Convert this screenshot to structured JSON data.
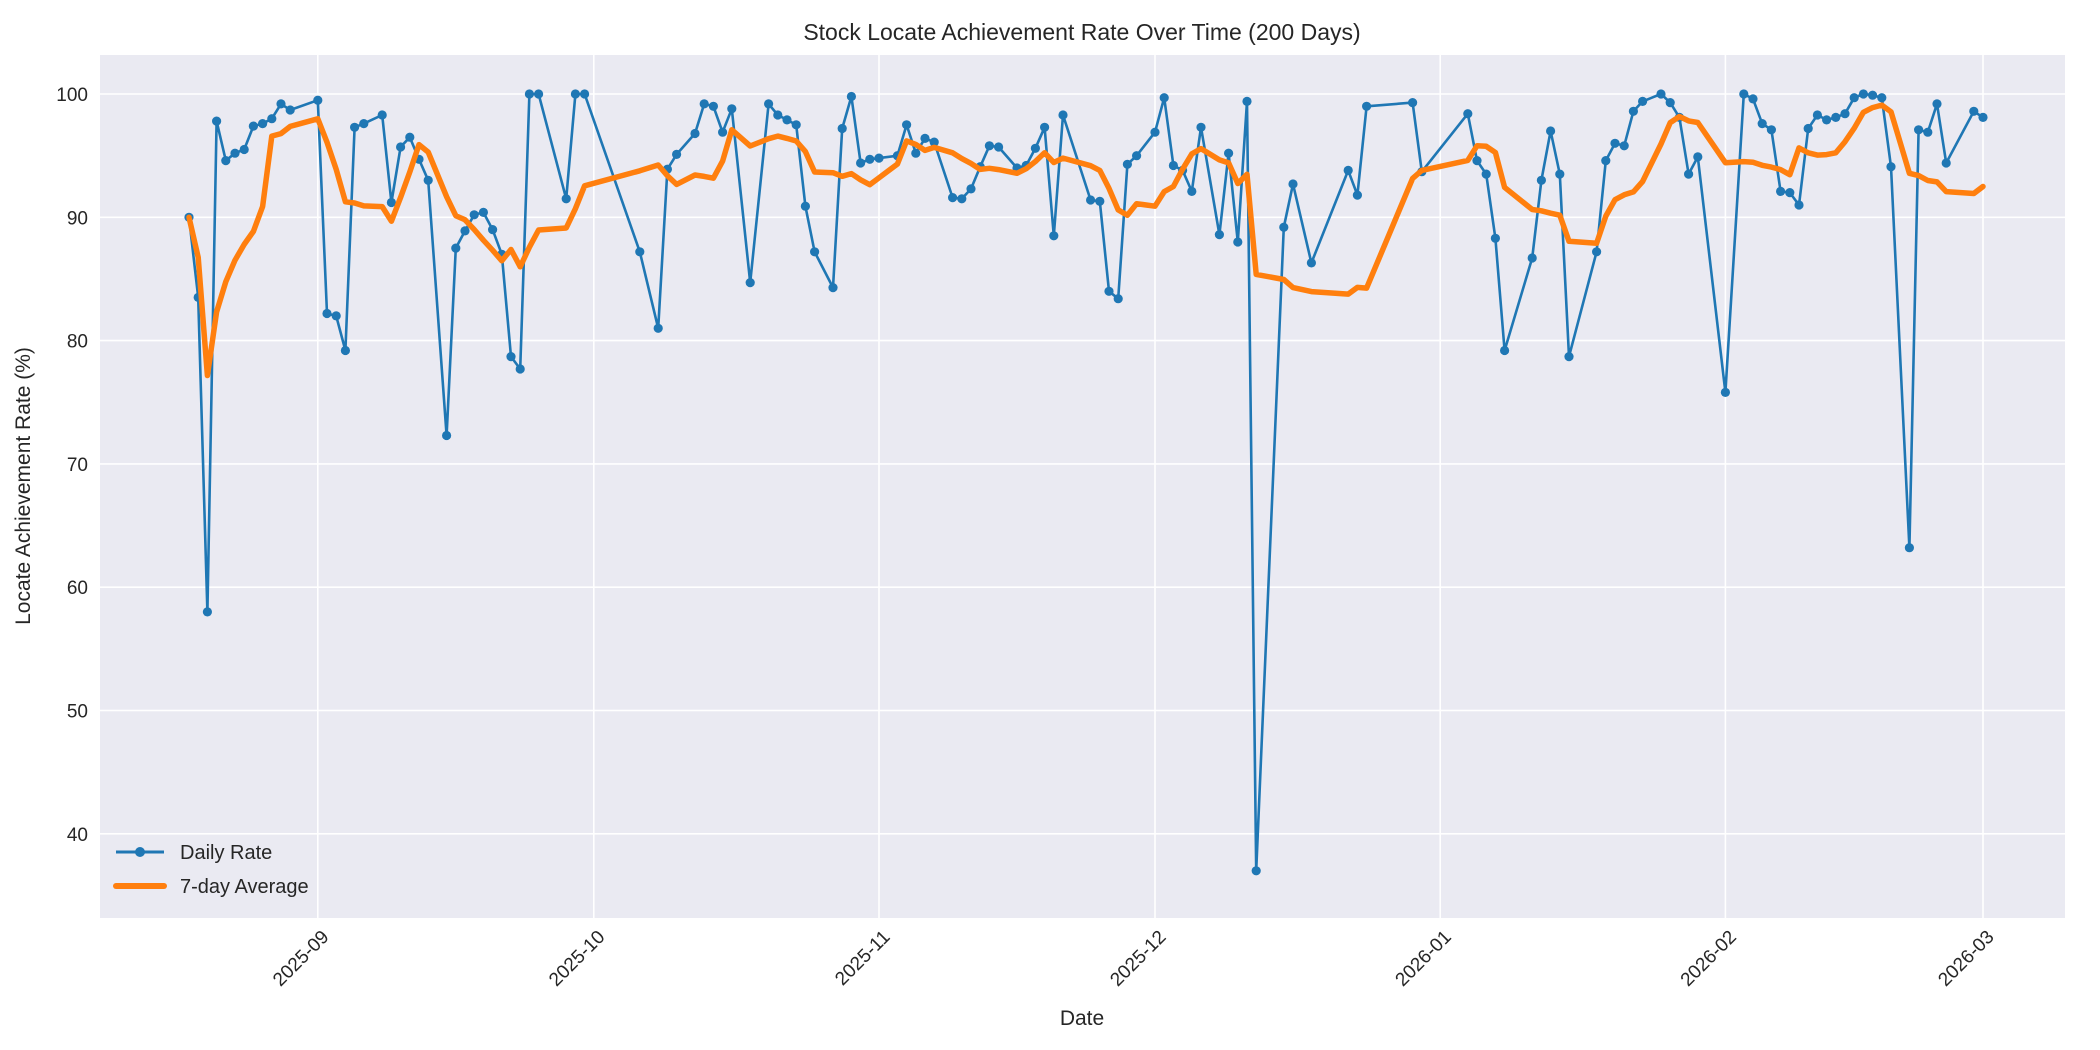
{
  "chart_data": {
    "type": "line",
    "title": "Stock Locate Achievement Rate Over Time (200 Days)",
    "xlabel": "Date",
    "ylabel": "Locate Achievement Rate (%)",
    "legend": {
      "daily": "Daily Rate",
      "average": "7-day Average"
    },
    "grid": true,
    "legend_position": "lower-left",
    "ylim": [
      33.2,
      103.2
    ],
    "yticks": [
      40,
      50,
      60,
      70,
      80,
      90,
      100
    ],
    "xticks": [
      {
        "date": "2025-09-01",
        "label": "2025-09"
      },
      {
        "date": "2025-10-01",
        "label": "2025-10"
      },
      {
        "date": "2025-11-01",
        "label": "2025-11"
      },
      {
        "date": "2025-12-01",
        "label": "2025-12"
      },
      {
        "date": "2026-01-01",
        "label": "2026-01"
      },
      {
        "date": "2026-02-01",
        "label": "2026-02"
      },
      {
        "date": "2026-03-01",
        "label": "2026-03"
      }
    ],
    "colors": {
      "daily": "#1f77b4",
      "average": "#ff7f0e",
      "plot_background": "#eaeaf2",
      "gridline": "#ffffff",
      "figure_background": "#ffffff",
      "text": "#262626"
    },
    "average_definition": "rolling mean of last 7 observations (min 1)",
    "series": {
      "name": "Daily Rate",
      "dates": [
        "2025-08-18",
        "2025-08-19",
        "2025-08-20",
        "2025-08-21",
        "2025-08-22",
        "2025-08-23",
        "2025-08-24",
        "2025-08-25",
        "2025-08-26",
        "2025-08-27",
        "2025-08-28",
        "2025-08-29",
        "2025-09-01",
        "2025-09-02",
        "2025-09-03",
        "2025-09-04",
        "2025-09-05",
        "2025-09-06",
        "2025-09-08",
        "2025-09-09",
        "2025-09-10",
        "2025-09-11",
        "2025-09-12",
        "2025-09-13",
        "2025-09-15",
        "2025-09-16",
        "2025-09-17",
        "2025-09-18",
        "2025-09-19",
        "2025-09-20",
        "2025-09-21",
        "2025-09-22",
        "2025-09-23",
        "2025-09-24",
        "2025-09-25",
        "2025-09-28",
        "2025-09-29",
        "2025-09-30",
        "2025-10-06",
        "2025-10-08",
        "2025-10-09",
        "2025-10-10",
        "2025-10-12",
        "2025-10-13",
        "2025-10-14",
        "2025-10-15",
        "2025-10-16",
        "2025-10-18",
        "2025-10-20",
        "2025-10-21",
        "2025-10-22",
        "2025-10-23",
        "2025-10-24",
        "2025-10-25",
        "2025-10-27",
        "2025-10-28",
        "2025-10-29",
        "2025-10-30",
        "2025-10-31",
        "2025-11-01",
        "2025-11-03",
        "2025-11-04",
        "2025-11-05",
        "2025-11-06",
        "2025-11-07",
        "2025-11-09",
        "2025-11-10",
        "2025-11-11",
        "2025-11-12",
        "2025-11-13",
        "2025-11-14",
        "2025-11-16",
        "2025-11-17",
        "2025-11-18",
        "2025-11-19",
        "2025-11-20",
        "2025-11-21",
        "2025-11-24",
        "2025-11-25",
        "2025-11-26",
        "2025-11-27",
        "2025-11-28",
        "2025-11-29",
        "2025-12-01",
        "2025-12-02",
        "2025-12-03",
        "2025-12-04",
        "2025-12-05",
        "2025-12-06",
        "2025-12-08",
        "2025-12-09",
        "2025-12-10",
        "2025-12-11",
        "2025-12-12",
        "2025-12-15",
        "2025-12-16",
        "2025-12-18",
        "2025-12-22",
        "2025-12-23",
        "2025-12-24",
        "2025-12-29",
        "2025-12-30",
        "2026-01-04",
        "2026-01-05",
        "2026-01-06",
        "2026-01-07",
        "2026-01-08",
        "2026-01-11",
        "2026-01-12",
        "2026-01-13",
        "2026-01-14",
        "2026-01-15",
        "2026-01-18",
        "2026-01-19",
        "2026-01-20",
        "2026-01-21",
        "2026-01-22",
        "2026-01-23",
        "2026-01-25",
        "2026-01-26",
        "2026-01-27",
        "2026-01-28",
        "2026-01-29",
        "2026-02-01",
        "2026-02-03",
        "2026-02-04",
        "2026-02-05",
        "2026-02-06",
        "2026-02-07",
        "2026-02-08",
        "2026-02-09",
        "2026-02-10",
        "2026-02-11",
        "2026-02-12",
        "2026-02-13",
        "2026-02-14",
        "2026-02-15",
        "2026-02-16",
        "2026-02-17",
        "2026-02-18",
        "2026-02-19",
        "2026-02-21",
        "2026-02-22",
        "2026-02-23",
        "2026-02-24",
        "2026-02-25",
        "2026-02-28",
        "2026-03-01"
      ],
      "values": [
        90.0,
        83.5,
        58.0,
        97.8,
        94.6,
        95.2,
        95.5,
        97.4,
        97.6,
        98.0,
        99.2,
        98.7,
        99.5,
        82.2,
        82.0,
        79.2,
        97.3,
        97.6,
        98.3,
        91.2,
        95.7,
        96.5,
        94.7,
        93.0,
        72.3,
        87.5,
        88.9,
        90.2,
        90.4,
        89.0,
        87.0,
        78.7,
        77.7,
        100.0,
        100.0,
        91.5,
        100.0,
        100.0,
        87.2,
        81.0,
        93.9,
        95.1,
        96.8,
        99.2,
        99.0,
        96.9,
        98.8,
        84.7,
        99.2,
        98.3,
        97.9,
        97.5,
        90.9,
        87.2,
        84.3,
        97.2,
        99.8,
        94.4,
        94.7,
        94.8,
        95.0,
        97.5,
        95.2,
        96.4,
        96.1,
        91.6,
        91.5,
        92.3,
        94.1,
        95.8,
        95.7,
        94.0,
        94.2,
        95.6,
        97.3,
        88.5,
        98.3,
        91.4,
        91.3,
        84.0,
        83.4,
        94.3,
        95.0,
        96.9,
        99.7,
        94.2,
        93.8,
        92.1,
        97.3,
        88.6,
        95.2,
        88.0,
        99.4,
        37.0,
        89.2,
        92.7,
        86.3,
        93.8,
        91.8,
        99.0,
        99.3,
        93.7,
        98.4,
        94.6,
        93.5,
        88.3,
        79.2,
        86.7,
        93.0,
        97.0,
        93.5,
        78.7,
        87.2,
        94.6,
        96.0,
        95.8,
        98.6,
        99.4,
        100.0,
        99.3,
        98.1,
        93.5,
        94.9,
        75.8,
        100.0,
        99.6,
        97.6,
        97.1,
        92.1,
        92.0,
        91.0,
        97.2,
        98.3,
        97.9,
        98.1,
        98.4,
        99.7,
        100.0,
        99.9,
        99.7,
        94.1,
        63.2,
        97.1,
        96.9,
        99.2,
        94.4,
        98.6,
        98.1
      ]
    }
  }
}
